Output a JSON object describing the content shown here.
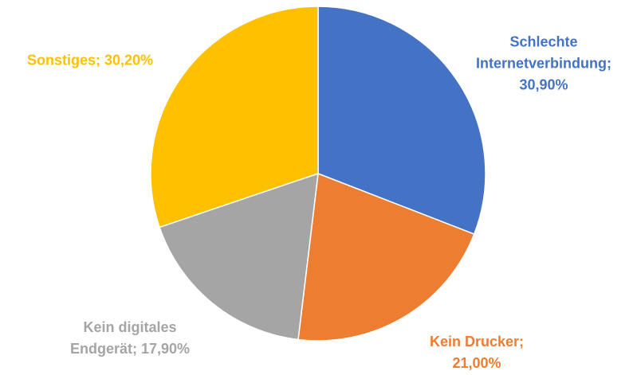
{
  "chart_data": {
    "type": "pie",
    "values": [
      30.9,
      21.0,
      17.9,
      30.2
    ],
    "value_labels": [
      "Schlechte Internetverbindung; 30,90%",
      "Kein Drucker; 21,00%",
      "Kein digitales Endgerät; 17,90%",
      "Sonstiges; 30,20%"
    ],
    "colors": [
      "#4472c4",
      "#ed7d31",
      "#a5a5a5",
      "#ffc000"
    ],
    "label_colors": [
      "#4472c4",
      "#ed7d31",
      "#a5a5a5",
      "#ffc000"
    ]
  }
}
